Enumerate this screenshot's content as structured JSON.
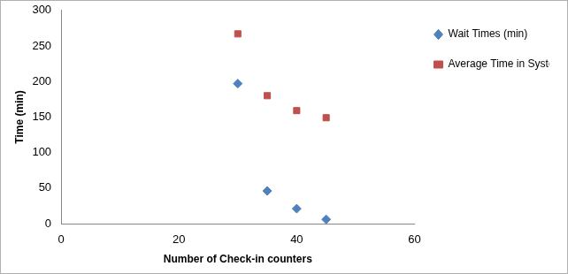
{
  "chart_data": {
    "type": "scatter",
    "x_label": "Number of Check-in counters",
    "y_label": "Time (min)",
    "series": [
      {
        "name": "Wait Times (min)",
        "color": "#4f81bd",
        "marker": "diamond",
        "x": [
          30,
          35,
          40,
          45
        ],
        "values": [
          197,
          46,
          21,
          6
        ]
      },
      {
        "name": "Average Time in System (min)",
        "color": "#c0504d",
        "marker": "square",
        "x": [
          30,
          35,
          40,
          45
        ],
        "values": [
          267,
          180,
          159,
          149
        ]
      }
    ],
    "xlim": [
      0,
      60
    ],
    "xticks": [
      0,
      20,
      40,
      60
    ],
    "ylim": [
      0,
      300
    ],
    "yticks": [
      0,
      50,
      100,
      150,
      200,
      250,
      300
    ],
    "grid": false,
    "legend": "right"
  }
}
